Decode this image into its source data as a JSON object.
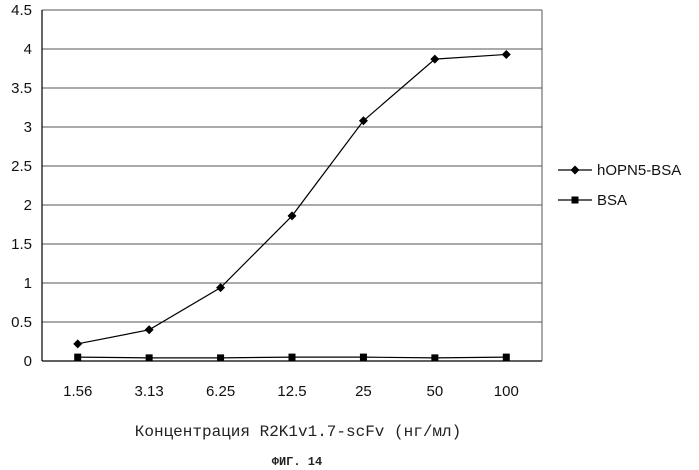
{
  "chart_data": {
    "type": "line",
    "categories": [
      "1.56",
      "3.13",
      "6.25",
      "12.5",
      "25",
      "50",
      "100"
    ],
    "series": [
      {
        "name": "hOPN5-BSA",
        "marker": "diamond",
        "values": [
          0.22,
          0.4,
          0.94,
          1.86,
          3.08,
          3.87,
          3.93
        ]
      },
      {
        "name": "BSA",
        "marker": "square",
        "values": [
          0.05,
          0.04,
          0.04,
          0.05,
          0.05,
          0.04,
          0.05
        ]
      }
    ],
    "xlabel": "Концентрация R2K1v1.7-scFv (нг/мл)",
    "ylabel": "",
    "ylim": [
      0,
      4.5
    ],
    "yticks": [
      "0",
      "0.5",
      "1",
      "1.5",
      "2",
      "2.5",
      "3",
      "3.5",
      "4",
      "4.5"
    ],
    "grid": true,
    "legend": "right",
    "caption": "ФИГ. 14",
    "colors": {
      "line": "#000000",
      "grid": "#555555",
      "axis": "#000000"
    }
  }
}
